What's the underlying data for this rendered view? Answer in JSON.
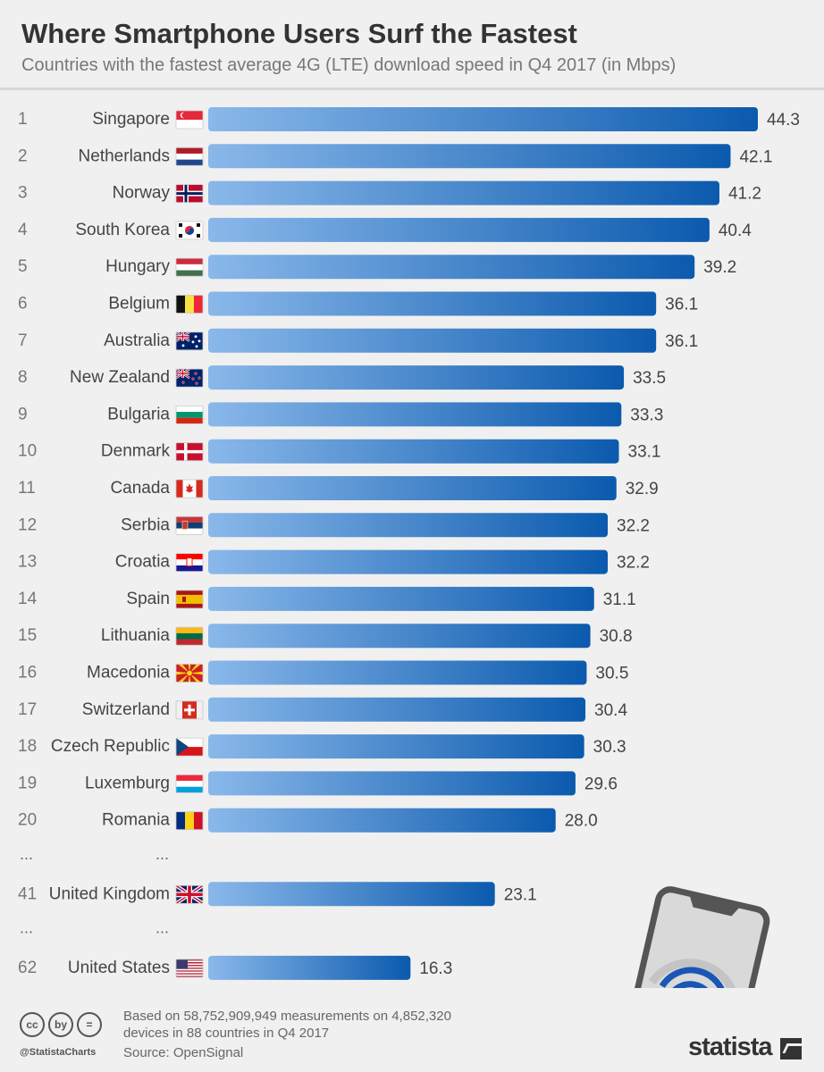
{
  "title": "Where Smartphone Users Surf the Fastest",
  "subtitle": "Countries with the fastest average 4G (LTE) download speed in Q4 2017 (in Mbps)",
  "chart_data": {
    "type": "bar",
    "orientation": "horizontal",
    "title": "Where Smartphone Users Surf the Fastest",
    "subtitle": "Countries with the fastest average 4G (LTE) download speed in Q4 2017 (in Mbps)",
    "gap_marker": "...",
    "rows": [
      {
        "rank": "1",
        "country": "Singapore",
        "value": 44.3,
        "label": "44.3",
        "flag": "singapore"
      },
      {
        "rank": "2",
        "country": "Netherlands",
        "value": 42.1,
        "label": "42.1",
        "flag": "netherlands"
      },
      {
        "rank": "3",
        "country": "Norway",
        "value": 41.2,
        "label": "41.2",
        "flag": "norway"
      },
      {
        "rank": "4",
        "country": "South Korea",
        "value": 40.4,
        "label": "40.4",
        "flag": "south-korea"
      },
      {
        "rank": "5",
        "country": "Hungary",
        "value": 39.2,
        "label": "39.2",
        "flag": "hungary"
      },
      {
        "rank": "6",
        "country": "Belgium",
        "value": 36.1,
        "label": "36.1",
        "flag": "belgium"
      },
      {
        "rank": "7",
        "country": "Australia",
        "value": 36.1,
        "label": "36.1",
        "flag": "australia"
      },
      {
        "rank": "8",
        "country": "New Zealand",
        "value": 33.5,
        "label": "33.5",
        "flag": "new-zealand"
      },
      {
        "rank": "9",
        "country": "Bulgaria",
        "value": 33.3,
        "label": "33.3",
        "flag": "bulgaria"
      },
      {
        "rank": "10",
        "country": "Denmark",
        "value": 33.1,
        "label": "33.1",
        "flag": "denmark"
      },
      {
        "rank": "11",
        "country": "Canada",
        "value": 32.9,
        "label": "32.9",
        "flag": "canada"
      },
      {
        "rank": "12",
        "country": "Serbia",
        "value": 32.2,
        "label": "32.2",
        "flag": "serbia"
      },
      {
        "rank": "13",
        "country": "Croatia",
        "value": 32.2,
        "label": "32.2",
        "flag": "croatia"
      },
      {
        "rank": "14",
        "country": "Spain",
        "value": 31.1,
        "label": "31.1",
        "flag": "spain"
      },
      {
        "rank": "15",
        "country": "Lithuania",
        "value": 30.8,
        "label": "30.8",
        "flag": "lithuania"
      },
      {
        "rank": "16",
        "country": "Macedonia",
        "value": 30.5,
        "label": "30.5",
        "flag": "macedonia"
      },
      {
        "rank": "17",
        "country": "Switzerland",
        "value": 30.4,
        "label": "30.4",
        "flag": "switzerland"
      },
      {
        "rank": "18",
        "country": "Czech Republic",
        "value": 30.3,
        "label": "30.3",
        "flag": "czech-republic"
      },
      {
        "rank": "19",
        "country": "Luxemburg",
        "value": 29.6,
        "label": "29.6",
        "flag": "luxemburg"
      },
      {
        "rank": "20",
        "country": "Romania",
        "value": 28.0,
        "label": "28.0",
        "flag": "romania"
      },
      {
        "gap": true
      },
      {
        "rank": "41",
        "country": "United Kingdom",
        "value": 23.1,
        "label": "23.1",
        "flag": "united-kingdom"
      },
      {
        "gap": true
      },
      {
        "rank": "62",
        "country": "United States",
        "value": 16.3,
        "label": "16.3",
        "flag": "united-states"
      }
    ],
    "xlim": [
      0,
      44.3
    ],
    "bar_gradient": [
      "#8ab8ea",
      "#0b5aae"
    ],
    "illustration": "smartphone-wifi-speedometer-icon"
  },
  "footer": {
    "license_icons": [
      "cc",
      "by",
      "="
    ],
    "handle": "@StatistaCharts",
    "note": "Based on 58,752,909,949 measurements on 4,852,320 devices in 88 countries in Q4 2017",
    "source": "Source: OpenSignal",
    "brand": "statista"
  }
}
